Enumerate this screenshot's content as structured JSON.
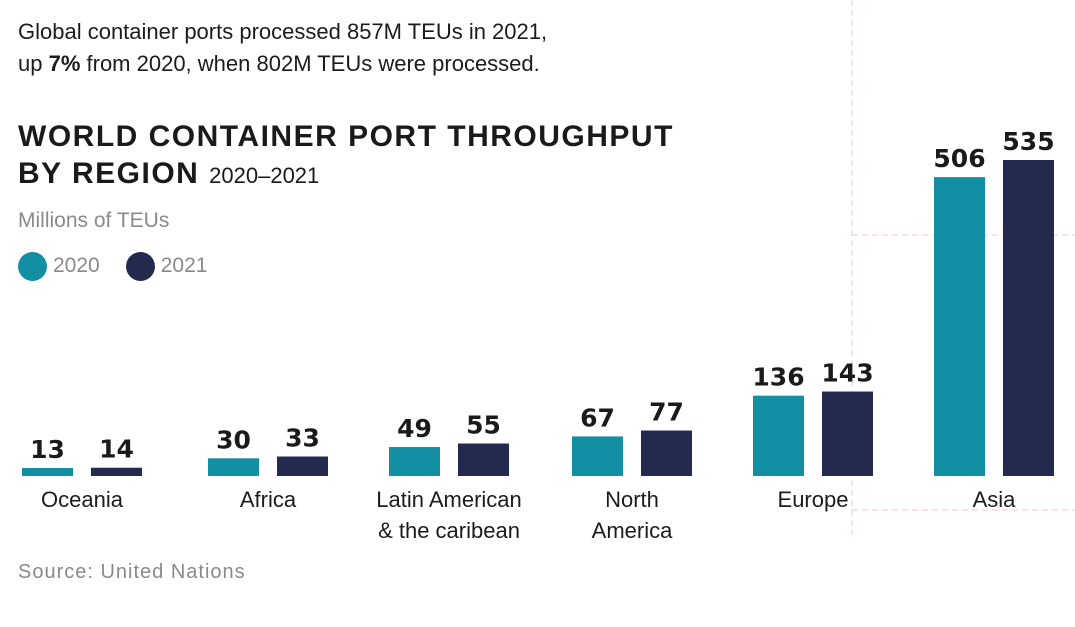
{
  "intro": {
    "line1": "Global container ports processed 857M TEUs in 2021,",
    "line2_prefix": "up ",
    "line2_bold": "7%",
    "line2_suffix": " from 2020, when 802M TEUs were processed."
  },
  "title": {
    "line1": "WORLD CONTAINER PORT THROUGHPUT",
    "line2": "BY REGION",
    "years": "2020–2021"
  },
  "source": "Source: United Nations",
  "colors": {
    "s2020": "#138fa3",
    "s2021": "#232a4e",
    "grid": "#f0c9c9"
  },
  "chart_data": {
    "type": "bar",
    "title": "WORLD CONTAINER PORT THROUGHPUT BY REGION 2020–2021",
    "ylabel": "Millions of TEUs",
    "categories": [
      [
        "Oceania"
      ],
      [
        "Africa"
      ],
      [
        "Latin American",
        "& the caribean"
      ],
      [
        "North",
        "America"
      ],
      [
        "Europe"
      ],
      [
        "Asia"
      ]
    ],
    "series": [
      {
        "name": "2020",
        "values": [
          13,
          30,
          49,
          67,
          136,
          506
        ]
      },
      {
        "name": "2021",
        "values": [
          14,
          33,
          55,
          77,
          143,
          535
        ]
      }
    ],
    "ylim": [
      0,
      535
    ],
    "legend": "top-left",
    "grid": false
  }
}
